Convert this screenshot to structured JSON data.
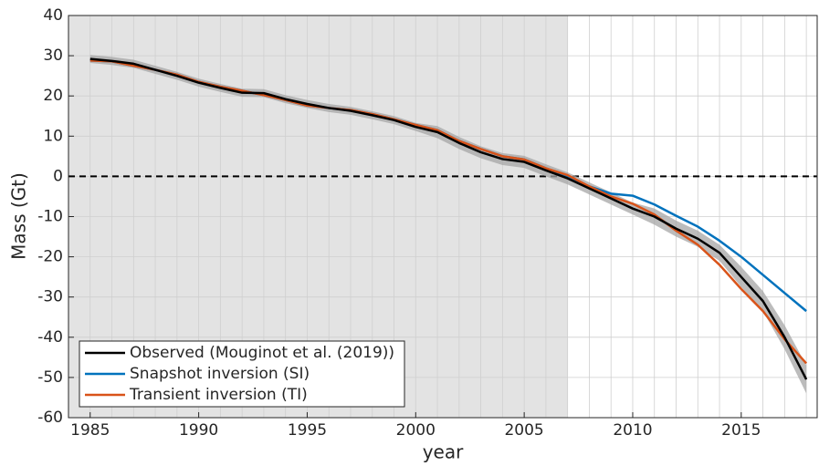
{
  "chart_data": {
    "type": "line",
    "xlabel": "year",
    "ylabel": "Mass (Gt)",
    "x": [
      1985,
      1986,
      1987,
      1988,
      1989,
      1990,
      1991,
      1992,
      1993,
      1994,
      1995,
      1996,
      1997,
      1998,
      1999,
      2000,
      2001,
      2002,
      2003,
      2004,
      2005,
      2006,
      2007,
      2008,
      2009,
      2010,
      2011,
      2012,
      2013,
      2014,
      2015,
      2016,
      2017,
      2018
    ],
    "xlim": [
      1984,
      2018.5
    ],
    "ylim": [
      -60,
      40
    ],
    "xticks": [
      1985,
      1990,
      1995,
      2000,
      2005,
      2010,
      2015
    ],
    "yticks": [
      -60,
      -50,
      -40,
      -30,
      -20,
      -10,
      0,
      10,
      20,
      30,
      40
    ],
    "grid": true,
    "shaded_until": 2007,
    "zero_line": true,
    "legend": "lower left",
    "series": [
      {
        "name": "Observed (Mouginot et al. (2019))",
        "color": "#000000",
        "values": [
          29.2,
          28.7,
          28,
          26.5,
          25,
          23.3,
          22,
          20.8,
          20.7,
          19.2,
          18,
          17,
          16.3,
          15.2,
          14,
          12.3,
          11,
          8.3,
          6,
          4.3,
          3.6,
          1.5,
          -0.5,
          -3,
          -5.5,
          -8,
          -10,
          -13,
          -15.5,
          -19,
          -25,
          -31,
          -40,
          -50.5
        ],
        "error": [
          1,
          1,
          1,
          1,
          1,
          1,
          1,
          1,
          1,
          1,
          1,
          1,
          1,
          1,
          1,
          1,
          1.5,
          1.5,
          1.5,
          1.5,
          1.5,
          1.5,
          1.5,
          1.5,
          1.5,
          1.5,
          2,
          2,
          2,
          2,
          2.5,
          2.5,
          3,
          3.5
        ]
      },
      {
        "name": "Snapshot inversion (SI)",
        "color": "#0072bd",
        "values": [
          28.8,
          28.6,
          27.5,
          26.5,
          25.3,
          23.5,
          22.3,
          21.3,
          20.2,
          19,
          17.6,
          17,
          16.5,
          15.5,
          14.2,
          12.8,
          11.5,
          8.8,
          6.8,
          5,
          4.2,
          2,
          -0.3,
          -2.5,
          -4.3,
          -4.8,
          -7,
          -9.8,
          -12.5,
          -16,
          -20,
          -24.5,
          -29,
          -33.5
        ]
      },
      {
        "name": "Transient inversion (TI)",
        "color": "#d95319",
        "values": [
          28.8,
          28.6,
          27.5,
          26.5,
          25.3,
          23.5,
          22.3,
          21.3,
          20.2,
          19,
          17.6,
          17,
          16.5,
          15.5,
          14.2,
          12.8,
          11.5,
          8.8,
          6.8,
          5,
          4.2,
          2,
          0.3,
          -2.5,
          -5,
          -6.8,
          -9.5,
          -13.5,
          -17,
          -22,
          -28,
          -33.5,
          -40.5,
          -46.5
        ]
      }
    ]
  }
}
